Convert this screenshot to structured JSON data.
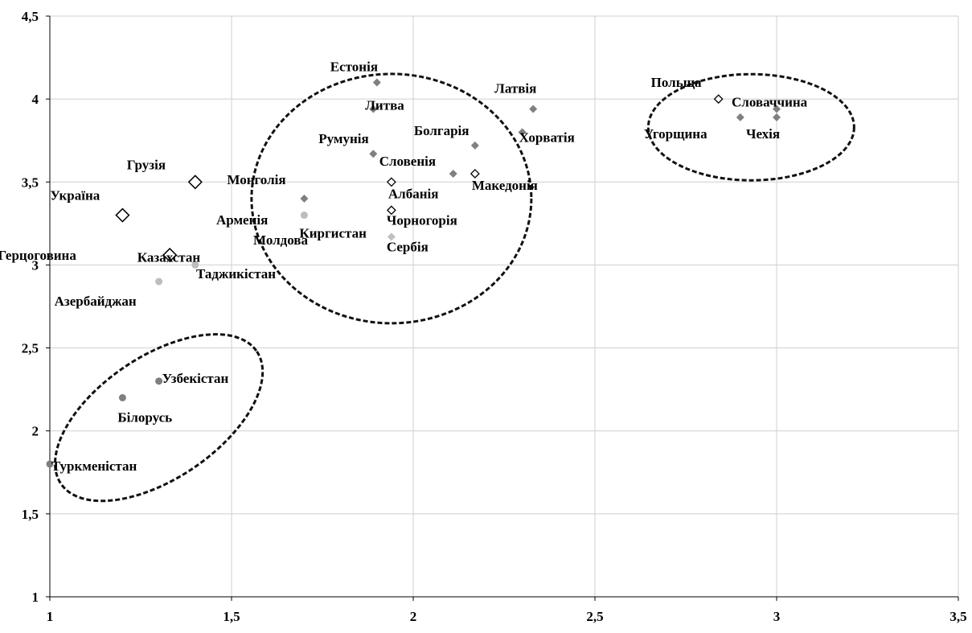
{
  "chart_data": {
    "type": "scatter",
    "xlim": [
      1,
      3.5
    ],
    "ylim": [
      1,
      4.5
    ],
    "xticks": [
      "1",
      "1,5",
      "2",
      "2,5",
      "3",
      "3,5"
    ],
    "yticks": [
      "1",
      "1,5",
      "2",
      "2,5",
      "3",
      "3,5",
      "4",
      "4,5"
    ],
    "grid": true,
    "series": [
      {
        "marker": "diamond-dark",
        "color": "#808080",
        "points": [
          {
            "label": "Естонія",
            "x": 1.9,
            "y": 4.1
          },
          {
            "label": "Литва",
            "x": 1.89,
            "y": 3.94
          },
          {
            "label": "Румунія",
            "x": 1.89,
            "y": 3.67
          },
          {
            "label": "Болгарія",
            "x": 2.17,
            "y": 3.72
          },
          {
            "label": "Латвія",
            "x": 2.33,
            "y": 3.94
          },
          {
            "label": "Хорватія",
            "x": 2.3,
            "y": 3.8
          },
          {
            "label": "Словенія",
            "x": 2.11,
            "y": 3.55
          },
          {
            "label": "Словаччина",
            "x": 3.0,
            "y": 3.94
          },
          {
            "label": "Угорщина",
            "x": 2.9,
            "y": 3.89
          },
          {
            "label": "Чехія",
            "x": 3.0,
            "y": 3.89
          },
          {
            "label": "Монголія",
            "x": 1.7,
            "y": 3.4
          }
        ]
      },
      {
        "marker": "diamond-light",
        "color": "#c0c0c0",
        "points": [
          {
            "label": "Сербія",
            "x": 1.94,
            "y": 3.17
          }
        ]
      },
      {
        "marker": "diamond-outline-small",
        "color": "#000000",
        "points": [
          {
            "label": "Албанія",
            "x": 1.94,
            "y": 3.5
          },
          {
            "label": "Македонія",
            "x": 2.17,
            "y": 3.55
          },
          {
            "label": "Чорногорія",
            "x": 1.94,
            "y": 3.33
          },
          {
            "label": "Польща",
            "x": 2.84,
            "y": 4.0
          }
        ]
      },
      {
        "marker": "diamond-outline-large",
        "color": "#000000",
        "points": [
          {
            "label": "Грузія",
            "x": 1.4,
            "y": 3.5
          },
          {
            "label": "Україна",
            "x": 1.2,
            "y": 3.3
          },
          {
            "label": "Боснія і Герцоговина",
            "x": 1.33,
            "y": 3.06
          }
        ]
      },
      {
        "marker": "circle-light",
        "color": "#bdbdbd",
        "points": [
          {
            "label": "Киргистан",
            "x": 1.7,
            "y": 3.3
          },
          {
            "label": "Казахстан",
            "x": 1.4,
            "y": 3.0
          },
          {
            "label": "Азербайджан",
            "x": 1.3,
            "y": 2.9
          }
        ]
      },
      {
        "marker": "circle-dark",
        "color": "#7f7f7f",
        "points": [
          {
            "label": "Узбекістан",
            "x": 1.3,
            "y": 2.3
          },
          {
            "label": "Білорусь",
            "x": 1.2,
            "y": 2.2
          },
          {
            "label": "Туркменістан",
            "x": 1.0,
            "y": 1.8
          }
        ]
      }
    ],
    "extra_labels": [
      "Арменія",
      "Молдова",
      "Таджикістан"
    ]
  }
}
